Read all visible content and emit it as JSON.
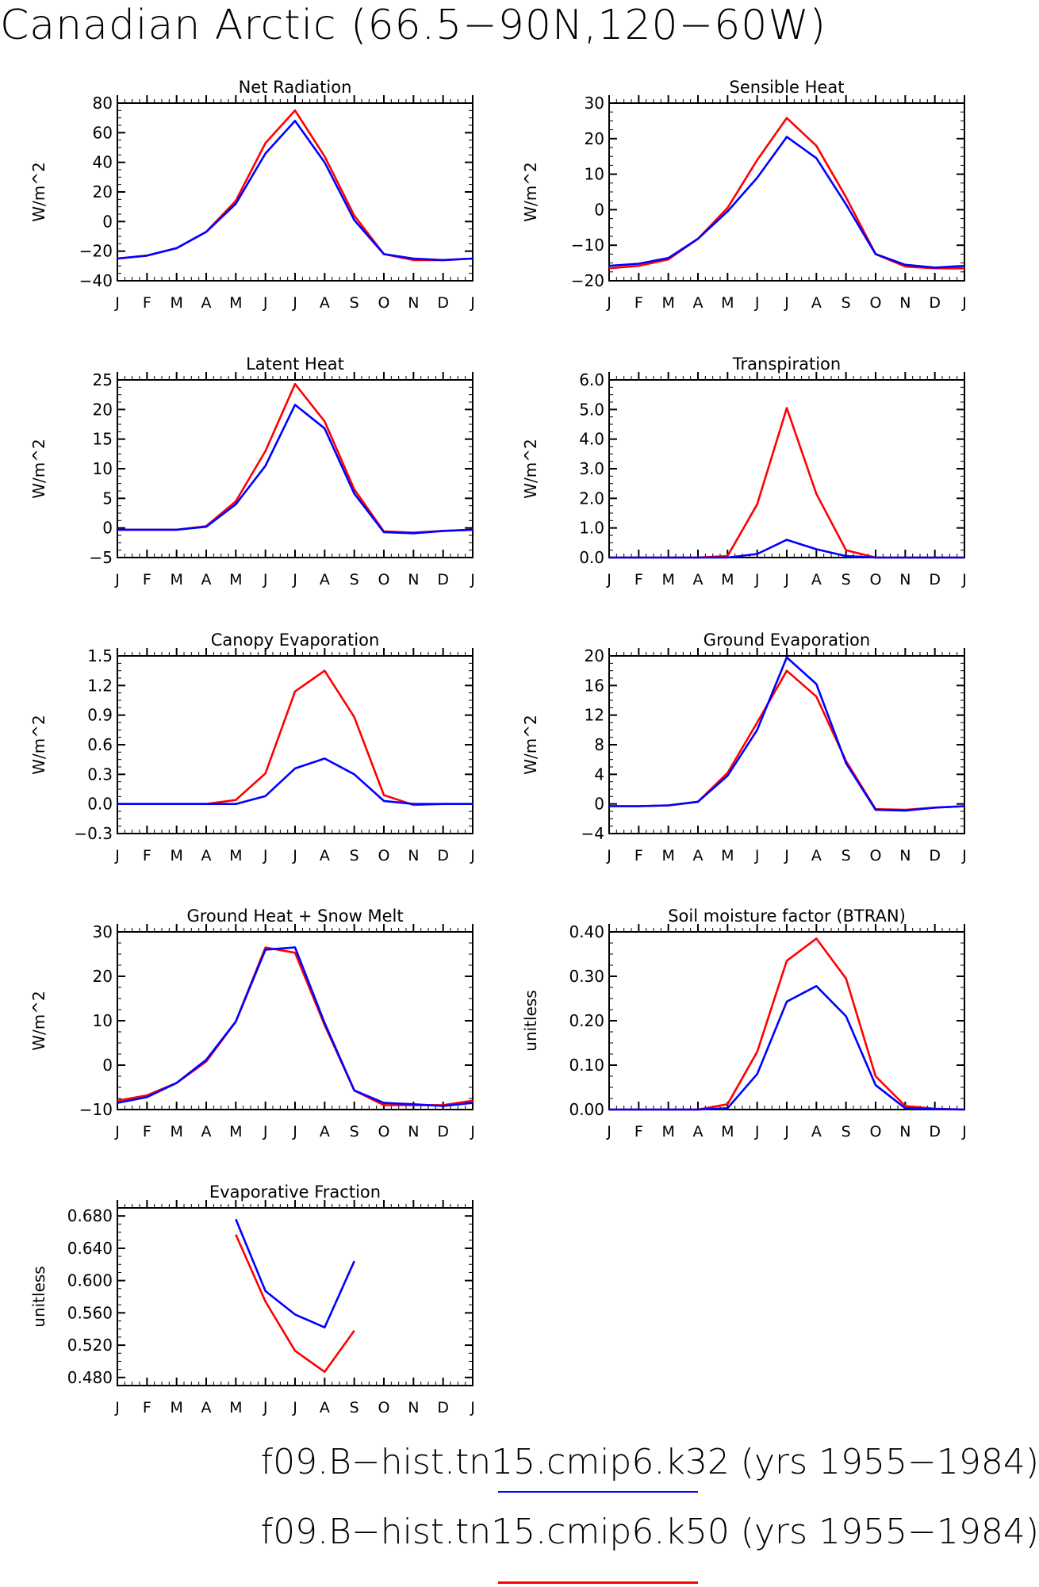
{
  "title": "Canadian Arctic (66.5−90N,120−60W)",
  "colors": {
    "k32": "#0000ff",
    "k50": "#ff0000",
    "axis": "#000000"
  },
  "months": [
    "J",
    "F",
    "M",
    "A",
    "M",
    "J",
    "J",
    "A",
    "S",
    "O",
    "N",
    "D",
    "J"
  ],
  "legend": [
    {
      "label": "f09.B−hist.tn15.cmip6.k32 (yrs 1955−1984)",
      "color": "#0000ff"
    },
    {
      "label": "f09.B−hist.tn15.cmip6.k50 (yrs 1955−1984)",
      "color": "#ff0000"
    }
  ],
  "chart_data": [
    {
      "type": "line",
      "title": "Net Radiation",
      "ylabel": "W/m^2",
      "ylim": [
        -40,
        80
      ],
      "yticks": [
        "80",
        "60",
        "40",
        "20",
        "0",
        "−20",
        "−40"
      ],
      "ytick_values": [
        80,
        60,
        40,
        20,
        0,
        -20,
        -40
      ],
      "series": [
        {
          "color": "#ff0000",
          "values": [
            -25,
            -23,
            -18,
            -7,
            14,
            53,
            75,
            44,
            4,
            -22,
            -26,
            -26,
            -25
          ]
        },
        {
          "color": "#0000ff",
          "values": [
            -25,
            -23,
            -18,
            -7,
            12,
            46,
            68,
            40,
            1,
            -22,
            -25,
            -26,
            -25
          ]
        }
      ]
    },
    {
      "type": "line",
      "title": "Sensible Heat",
      "ylabel": "W/m^2",
      "ylim": [
        -20,
        30
      ],
      "yticks": [
        "30",
        "20",
        "10",
        "0",
        "−10",
        "−20"
      ],
      "ytick_values": [
        30,
        20,
        10,
        0,
        -10,
        -20
      ],
      "series": [
        {
          "color": "#ff0000",
          "values": [
            -16.5,
            -15.8,
            -14,
            -8.2,
            0.5,
            14,
            25.8,
            18,
            3.5,
            -12.5,
            -16,
            -16.5,
            -16.5
          ]
        },
        {
          "color": "#0000ff",
          "values": [
            -15.8,
            -15.2,
            -13.6,
            -8.2,
            -0.5,
            9,
            20.5,
            14.5,
            1.5,
            -12.5,
            -15.5,
            -16.3,
            -15.8
          ]
        }
      ]
    },
    {
      "type": "line",
      "title": "Latent Heat",
      "ylabel": "W/m^2",
      "ylim": [
        -5,
        25
      ],
      "yticks": [
        "25",
        "20",
        "15",
        "10",
        "5",
        "0",
        "−5"
      ],
      "ytick_values": [
        25,
        20,
        15,
        10,
        5,
        0,
        -5
      ],
      "series": [
        {
          "color": "#ff0000",
          "values": [
            -0.3,
            -0.3,
            -0.3,
            0.3,
            4.5,
            13,
            24.3,
            18,
            6.5,
            -0.6,
            -0.8,
            -0.5,
            -0.3
          ]
        },
        {
          "color": "#0000ff",
          "values": [
            -0.3,
            -0.3,
            -0.3,
            0.2,
            4,
            10.5,
            20.8,
            16.8,
            5.8,
            -0.7,
            -0.9,
            -0.5,
            -0.3
          ]
        }
      ]
    },
    {
      "type": "line",
      "title": "Transpiration",
      "ylabel": "W/m^2",
      "ylim": [
        0,
        6
      ],
      "yticks": [
        "6.0",
        "5.0",
        "4.0",
        "3.0",
        "2.0",
        "1.0",
        "0.0"
      ],
      "ytick_values": [
        6,
        5,
        4,
        3,
        2,
        1,
        0
      ],
      "series": [
        {
          "color": "#ff0000",
          "values": [
            0,
            0,
            0,
            0,
            0.05,
            1.8,
            5.05,
            2.15,
            0.25,
            0,
            0,
            0,
            0
          ]
        },
        {
          "color": "#0000ff",
          "values": [
            0,
            0,
            0,
            0,
            0,
            0.12,
            0.6,
            0.28,
            0.05,
            0,
            0,
            0,
            0
          ]
        }
      ]
    },
    {
      "type": "line",
      "title": "Canopy Evaporation",
      "ylabel": "W/m^2",
      "ylim": [
        -0.3,
        1.5
      ],
      "yticks": [
        "1.5",
        "1.2",
        "0.9",
        "0.6",
        "0.3",
        "0.0",
        "−0.3"
      ],
      "ytick_values": [
        1.5,
        1.2,
        0.9,
        0.6,
        0.3,
        0,
        -0.3
      ],
      "series": [
        {
          "color": "#ff0000",
          "values": [
            0,
            0,
            0,
            0,
            0.04,
            0.31,
            1.14,
            1.35,
            0.88,
            0.09,
            -0.01,
            0,
            0
          ]
        },
        {
          "color": "#0000ff",
          "values": [
            0,
            0,
            0,
            0,
            0,
            0.08,
            0.36,
            0.46,
            0.3,
            0.03,
            0,
            0,
            0
          ]
        }
      ]
    },
    {
      "type": "line",
      "title": "Ground Evaporation",
      "ylabel": "W/m^2",
      "ylim": [
        -4,
        20
      ],
      "yticks": [
        "20",
        "16",
        "12",
        "8",
        "4",
        "0",
        "−4"
      ],
      "ytick_values": [
        20,
        16,
        12,
        8,
        4,
        0,
        -4
      ],
      "series": [
        {
          "color": "#ff0000",
          "values": [
            -0.3,
            -0.3,
            -0.2,
            0.3,
            4.2,
            11,
            18,
            14.5,
            5.8,
            -0.7,
            -0.8,
            -0.5,
            -0.3
          ]
        },
        {
          "color": "#0000ff",
          "values": [
            -0.3,
            -0.3,
            -0.2,
            0.3,
            3.8,
            10,
            19.8,
            16.2,
            5.5,
            -0.8,
            -0.9,
            -0.5,
            -0.3
          ]
        }
      ]
    },
    {
      "type": "line",
      "title": "Ground Heat + Snow Melt",
      "ylabel": "W/m^2",
      "ylim": [
        -10,
        30
      ],
      "yticks": [
        "30",
        "20",
        "10",
        "0",
        "−10"
      ],
      "ytick_values": [
        30,
        20,
        10,
        0,
        -10
      ],
      "series": [
        {
          "color": "#ff0000",
          "values": [
            -8,
            -6.8,
            -4,
            0.8,
            9.8,
            26.5,
            25.3,
            9,
            -5.7,
            -9,
            -9,
            -9,
            -8
          ]
        },
        {
          "color": "#0000ff",
          "values": [
            -8.5,
            -7.2,
            -4,
            1.2,
            9.8,
            26,
            26.5,
            9.5,
            -5.7,
            -8.5,
            -8.8,
            -9.2,
            -8.5
          ]
        }
      ]
    },
    {
      "type": "line",
      "title": "Soil moisture factor (BTRAN)",
      "ylabel": "unitless",
      "ylim": [
        0,
        0.4
      ],
      "yticks": [
        "0.40",
        "0.30",
        "0.20",
        "0.10",
        "0.00"
      ],
      "ytick_values": [
        0.4,
        0.3,
        0.2,
        0.1,
        0
      ],
      "series": [
        {
          "color": "#ff0000",
          "values": [
            0,
            0,
            0,
            0,
            0.012,
            0.13,
            0.335,
            0.385,
            0.295,
            0.075,
            0.008,
            0.002,
            0
          ]
        },
        {
          "color": "#0000ff",
          "values": [
            0,
            0,
            0,
            0,
            0.003,
            0.08,
            0.243,
            0.278,
            0.21,
            0.055,
            0.003,
            0.001,
            0
          ]
        }
      ]
    },
    {
      "type": "line",
      "title": "Evaporative Fraction",
      "ylabel": "unitless",
      "ylim": [
        0.47,
        0.69
      ],
      "yticks": [
        "0.680",
        "0.640",
        "0.600",
        "0.560",
        "0.520",
        "0.480"
      ],
      "ytick_values": [
        0.68,
        0.64,
        0.6,
        0.56,
        0.52,
        0.48
      ],
      "series": [
        {
          "color": "#ff0000",
          "values": [
            null,
            null,
            null,
            null,
            0.657,
            0.574,
            0.513,
            0.487,
            0.538,
            null,
            null,
            null,
            null
          ]
        },
        {
          "color": "#0000ff",
          "values": [
            null,
            null,
            null,
            null,
            0.676,
            0.587,
            0.558,
            0.542,
            0.624,
            null,
            null,
            null,
            null
          ]
        }
      ]
    }
  ]
}
